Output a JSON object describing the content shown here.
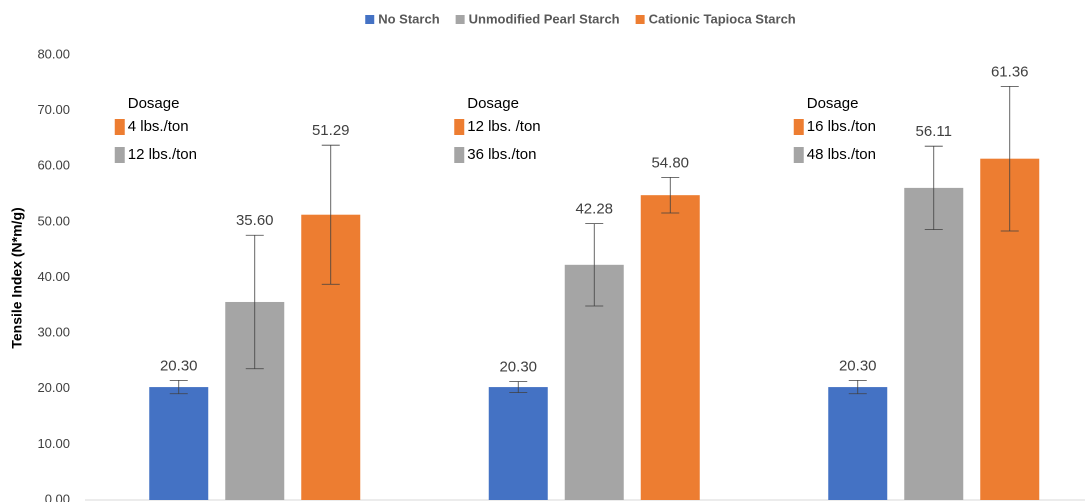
{
  "chart_data": {
    "type": "bar",
    "y_label": "Tensile Index (N*m/g)",
    "categories": [
      null,
      null,
      null
    ],
    "series": [
      {
        "name": "No Starch",
        "color": "#4472c4",
        "values": [
          20.3,
          20.3,
          20.3
        ],
        "value_labels": [
          "20.30",
          "20.30",
          "20.30"
        ],
        "errors": [
          1.2,
          1.0,
          1.2
        ]
      },
      {
        "name": "Unmodified Pearl Starch",
        "color": "#a5a5a5",
        "values": [
          35.6,
          42.28,
          56.11
        ],
        "value_labels": [
          "35.60",
          "42.28",
          "56.11"
        ],
        "errors": [
          12,
          7.4,
          7.5
        ]
      },
      {
        "name": "Cationic Tapioca Starch",
        "color": "#ed7d31",
        "values": [
          51.29,
          54.8,
          61.36
        ],
        "value_labels": [
          "51.29",
          "54.80",
          "61.36"
        ],
        "errors": [
          12.5,
          3.2,
          13
        ]
      }
    ],
    "ylim": [
      0,
      80
    ],
    "yticks": [
      {
        "value": 0,
        "label": "0.00"
      },
      {
        "value": 10,
        "label": "10.00"
      },
      {
        "value": 20,
        "label": "20.00"
      },
      {
        "value": 30,
        "label": "30.00"
      },
      {
        "value": 40,
        "label": "40.00"
      },
      {
        "value": 50,
        "label": "50.00"
      },
      {
        "value": 60,
        "label": "60.00"
      },
      {
        "value": 70,
        "label": "70.00"
      },
      {
        "value": 80,
        "label": "80.00"
      }
    ],
    "grid": false,
    "legend": "top",
    "annotations": [
      {
        "title": "Dosage",
        "items": [
          {
            "label": "4 lbs./ton",
            "color": "#ed7d31"
          },
          {
            "label": "12 lbs./ton",
            "color": "#a5a5a5"
          }
        ]
      },
      {
        "title": "Dosage",
        "items": [
          {
            "label": "12 lbs. /ton",
            "color": "#ed7d31"
          },
          {
            "label": "36 lbs./ton",
            "color": "#a5a5a5"
          }
        ]
      },
      {
        "title": "Dosage",
        "items": [
          {
            "label": "16 lbs./ton",
            "color": "#ed7d31"
          },
          {
            "label": "48 lbs./ton",
            "color": "#a5a5a5"
          }
        ]
      }
    ]
  }
}
